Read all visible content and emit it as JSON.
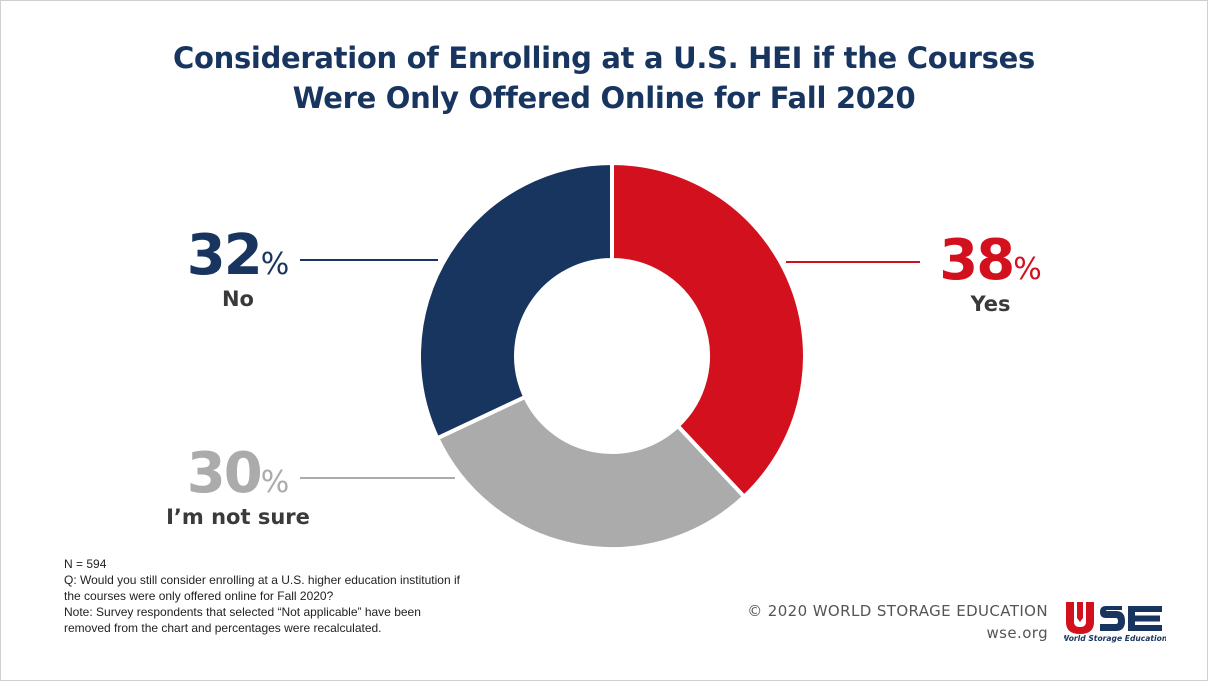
{
  "title": {
    "line1": "Consideration of Enrolling at a U.S. HEI if the Courses",
    "line2": "Were Only Offered Online for Fall 2020"
  },
  "chart_data": {
    "type": "pie",
    "donut": true,
    "slices": [
      {
        "label": "Yes",
        "value": 38,
        "display": "38",
        "color": "#d2101e"
      },
      {
        "label": "I’m not sure",
        "value": 30,
        "display": "30",
        "color": "#ababab"
      },
      {
        "label": "No",
        "value": 32,
        "display": "32",
        "color": "#18355f"
      }
    ],
    "unit": "%"
  },
  "notes": {
    "n": "N = 594",
    "question": "Q: Would you still consider enrolling at a U.S. higher education institution if the courses were only offered online for Fall 2020?",
    "note": "Note: Survey respondents that selected “Not applicable” have been removed from the chart and percentages were recalculated."
  },
  "footer": {
    "copyright": "© 2020 WORLD STORAGE EDUCATION",
    "website": "wse.org"
  },
  "logo": {
    "mark": "WSE",
    "tagline": "World Storage Education",
    "color_red": "#d2101e",
    "color_navy": "#18355f"
  }
}
